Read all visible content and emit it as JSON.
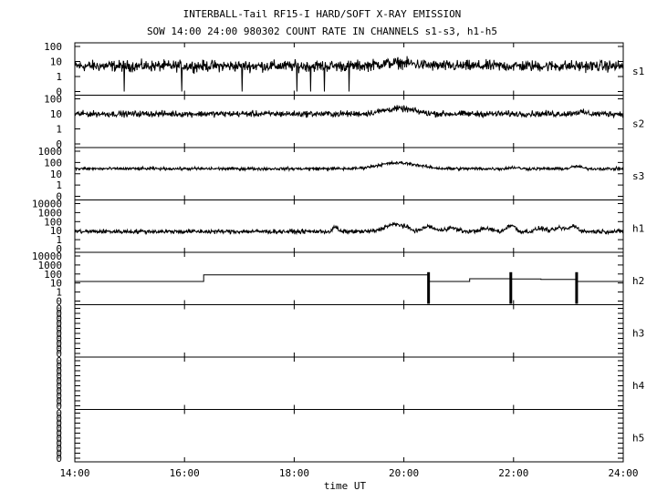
{
  "chart_data": {
    "type": "line",
    "title": "INTERBALL-Tail RF15-I HARD/SOFT X-RAY EMISSION",
    "subtitle": "SOW 14:00 24:00 980302  COUNT RATE IN CHANNELS s1-s3, h1-h5",
    "xlabel": "time UT",
    "xlim": [
      14,
      24
    ],
    "x_ticks": [
      14,
      16,
      18,
      20,
      22,
      24
    ],
    "x_tick_labels": [
      "14:00",
      "16:00",
      "18:00",
      "20:00",
      "22:00",
      "24:00"
    ],
    "y_scale": "log",
    "panels": [
      {
        "name": "s1",
        "tick_labels": [
          "100",
          "10",
          "1",
          "0"
        ],
        "baseline": 5,
        "noise": 0.55,
        "dropouts": [
          14.9,
          15.95,
          17.05,
          18.05,
          18.3,
          18.55,
          19.0
        ],
        "bumps": [
          {
            "x": 19.9,
            "amp": 1.6,
            "w": 0.3
          }
        ]
      },
      {
        "name": "s2",
        "tick_labels": [
          "100",
          "10",
          "1",
          "0"
        ],
        "baseline": 10,
        "noise": 0.3,
        "bumps": [
          {
            "x": 19.9,
            "amp": 2.2,
            "w": 0.25
          },
          {
            "x": 23.2,
            "amp": 1.3,
            "w": 0.1
          }
        ]
      },
      {
        "name": "s3",
        "tick_labels": [
          "1000",
          "100",
          "10",
          "1",
          "0"
        ],
        "baseline": 28,
        "noise": 0.2,
        "bumps": [
          {
            "x": 19.9,
            "amp": 3.2,
            "w": 0.3
          },
          {
            "x": 23.15,
            "amp": 1.6,
            "w": 0.08
          },
          {
            "x": 22.0,
            "amp": 1.3,
            "w": 0.08
          }
        ]
      },
      {
        "name": "h1",
        "tick_labels": [
          "10000",
          "1000",
          "100",
          "10",
          "1",
          "0"
        ],
        "baseline": 8,
        "noise": 0.35,
        "bumps": [
          {
            "x": 19.85,
            "amp": 6,
            "w": 0.15
          },
          {
            "x": 20.45,
            "amp": 3.5,
            "w": 0.08
          },
          {
            "x": 20.85,
            "amp": 2.5,
            "w": 0.1
          },
          {
            "x": 21.95,
            "amp": 5,
            "w": 0.06
          },
          {
            "x": 21.5,
            "amp": 2,
            "w": 0.1
          },
          {
            "x": 22.5,
            "amp": 2.2,
            "w": 0.08
          },
          {
            "x": 22.85,
            "amp": 2.5,
            "w": 0.08
          },
          {
            "x": 23.1,
            "amp": 4,
            "w": 0.06
          },
          {
            "x": 18.75,
            "amp": 3.5,
            "w": 0.03
          }
        ]
      },
      {
        "name": "h2",
        "tick_labels": [
          "10000",
          "1000",
          "100",
          "10",
          "1",
          "0"
        ],
        "steps": [
          [
            14.0,
            15
          ],
          [
            16.35,
            80
          ],
          [
            20.45,
            15
          ],
          [
            21.2,
            30
          ],
          [
            21.95,
            28
          ],
          [
            22.5,
            25
          ],
          [
            23.15,
            15
          ],
          [
            24.0,
            15
          ]
        ],
        "spikes": [
          20.45,
          21.95,
          23.15
        ]
      },
      {
        "name": "h3",
        "tick_labels": [
          "0",
          "0",
          "0",
          "0",
          "0",
          "0",
          "0",
          "0",
          "0",
          "0"
        ]
      },
      {
        "name": "h4",
        "tick_labels": [
          "0",
          "0",
          "0",
          "0",
          "0",
          "0",
          "0",
          "0",
          "0",
          "0"
        ]
      },
      {
        "name": "h5",
        "tick_labels": [
          "0",
          "0",
          "0",
          "0",
          "0",
          "0",
          "0",
          "0",
          "0",
          "0"
        ]
      }
    ]
  }
}
